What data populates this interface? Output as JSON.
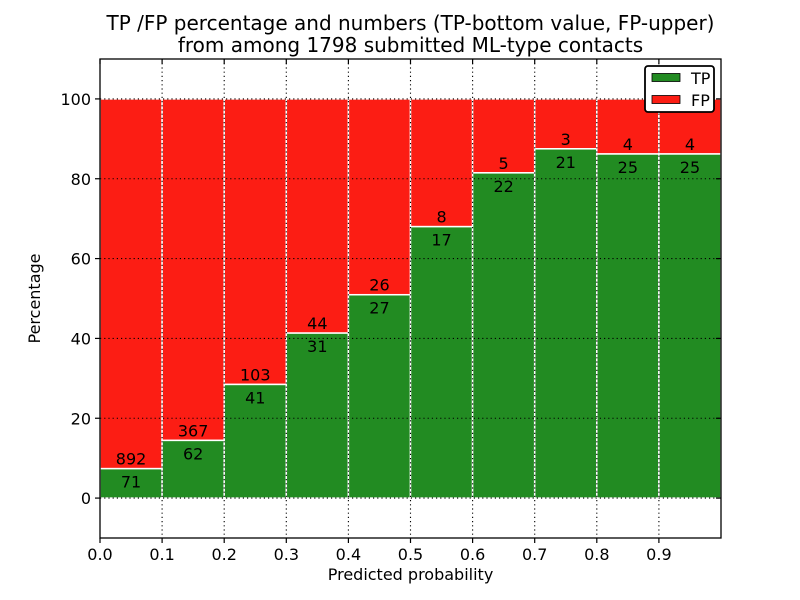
{
  "figure": {
    "title_lines": [
      "TP /FP percentage and numbers (TP-bottom value, FP-upper)",
      "from among 1798 submitted ML-type contacts"
    ]
  },
  "chart_data": {
    "type": "bar",
    "stacked": true,
    "percent_normalized": true,
    "title": "TP /FP percentage and numbers (TP-bottom value, FP-upper) from among 1798 submitted ML-type contacts",
    "xlabel": "Predicted probability",
    "ylabel": "Percentage",
    "total_contacts": 1798,
    "bin_edges": [
      0.0,
      0.1,
      0.2,
      0.3,
      0.4,
      0.5,
      0.6,
      0.7,
      0.8,
      0.9,
      1.0
    ],
    "x_tick_labels": [
      "0.0",
      "0.1",
      "0.2",
      "0.3",
      "0.4",
      "0.5",
      "0.6",
      "0.7",
      "0.8",
      "0.9"
    ],
    "y_ticks": [
      0,
      20,
      40,
      60,
      80,
      100
    ],
    "xlim": [
      0.0,
      1.0
    ],
    "ylim": [
      -10,
      110
    ],
    "grid": true,
    "grid_style": "dotted",
    "background_color": "#ffffff",
    "bar_edge_color": "#ffffff",
    "legend": {
      "position": "upper right",
      "entries": [
        {
          "label": "TP",
          "color": "#228b22"
        },
        {
          "label": "FP",
          "color": "#fc1d14"
        }
      ]
    },
    "series": [
      {
        "name": "TP",
        "role": "bottom",
        "color": "#228b22",
        "counts": [
          71,
          62,
          41,
          31,
          27,
          17,
          22,
          21,
          25,
          25
        ],
        "percent": [
          7.37,
          14.45,
          28.47,
          41.33,
          50.94,
          68.0,
          81.48,
          87.5,
          86.21,
          86.21
        ]
      },
      {
        "name": "FP",
        "role": "top",
        "color": "#fc1d14",
        "counts": [
          892,
          367,
          103,
          44,
          26,
          8,
          5,
          3,
          4,
          4
        ],
        "percent": [
          92.63,
          85.55,
          71.53,
          58.67,
          49.06,
          32.0,
          18.52,
          12.5,
          13.79,
          13.79
        ]
      }
    ]
  }
}
